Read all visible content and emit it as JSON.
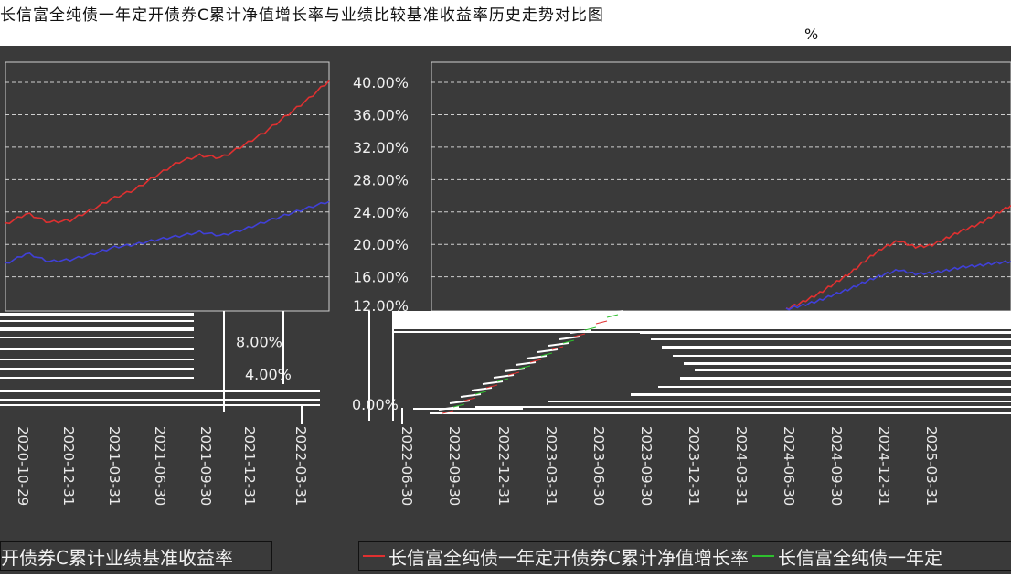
{
  "header": {
    "caption_noise": "长信富全纯债一年定开债券C累计净值增长率与业绩比较基准收益率历史走势对比图",
    "unit": "%"
  },
  "legend_left": "开债券C累计业绩基准收益率",
  "legend_right_items": [
    {
      "label": "长信富全纯债一年定开债券C累计净值增长率",
      "color": "#e03030"
    },
    {
      "label": "长信富全纯债一年定",
      "color": "#2ec02e"
    }
  ],
  "chart_data": {
    "type": "line",
    "ylim": [
      0,
      44
    ],
    "y_ticks": [
      "40.00%",
      "36.00%",
      "32.00%",
      "28.00%",
      "24.00%",
      "20.00%",
      "16.00%",
      "12.00%",
      "8.00%",
      "4.00%",
      "0.00%"
    ],
    "x_ticks": [
      "2020-10-29",
      "2020-12-31",
      "2021-03-31",
      "2021-06-30",
      "2021-09-30",
      "2021-12-31",
      "2022-03-31",
      "2022-06-30",
      "2022-09-30",
      "2022-12-31",
      "2023-03-31",
      "2023-06-30",
      "2023-09-30",
      "2023-12-31",
      "2024-03-31",
      "2024-06-30",
      "2024-09-30",
      "2024-12-31",
      "2025-03-31"
    ],
    "series": [
      {
        "name": "长信富全纯债一年定开债券C累计净值增长率",
        "color": "#e03030",
        "values": [
          0,
          0.3,
          0.9,
          1.6,
          2.4,
          3.5,
          5.1,
          7.0,
          9.4,
          11.8,
          14.9,
          17.5,
          19.2,
          17.8,
          18.1,
          19.8,
          21.6,
          23.0,
          25.2,
          27.3,
          28.4,
          28.0,
          29.9,
          32.0,
          34.6,
          37.2,
          40.2
        ]
      },
      {
        "name": "业绩比较基准收益率",
        "color": "#4040d8",
        "values": [
          0,
          0.3,
          0.7,
          1.3,
          1.9,
          2.7,
          4.0,
          5.6,
          7.8,
          9.8,
          12.4,
          14.5,
          16.3,
          14.9,
          15.2,
          16.1,
          17.3,
          17.8,
          18.6,
          19.2,
          19.9,
          19.3,
          20.3,
          21.6,
          22.8,
          24.0,
          25.1
        ]
      }
    ]
  }
}
